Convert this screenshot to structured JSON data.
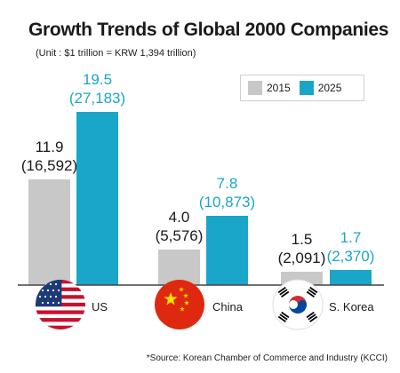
{
  "colors": {
    "y2015": "#c8c8c8",
    "y2025": "#1aa6c8",
    "label2015": "#1a1a1a",
    "label2025": "#1aa6c8"
  },
  "header": {
    "title": "Growth Trends of Global 2000 Companies",
    "unit_note": "(Unit : $1 trillion = KRW 1,394 trillion)"
  },
  "legend": {
    "items": [
      "2015",
      "2025"
    ]
  },
  "footer": {
    "source": "*Source: Korean Chamber of Commerce and Industry (KCCI)"
  },
  "flags": [
    "us-flag",
    "china-flag",
    "south-korea-flag"
  ],
  "chart_data": {
    "type": "bar",
    "title": "Growth Trends of Global 2000 Companies",
    "subtitle": "(Unit : $1 trillion = KRW 1,394 trillion)",
    "categories": [
      "US",
      "China",
      "S. Korea"
    ],
    "series": [
      {
        "name": "2015",
        "values": [
          11.9,
          4.0,
          1.5
        ],
        "labels": [
          "11.9",
          "4.0",
          "1.5"
        ],
        "sublabels": [
          "(16,592)",
          "(5,576)",
          "(2,091)"
        ]
      },
      {
        "name": "2025",
        "values": [
          19.5,
          7.8,
          1.7
        ],
        "labels": [
          "19.5",
          "7.8",
          "1.7"
        ],
        "sublabels": [
          "(27,183)",
          "(10,873)",
          "(2,370)"
        ]
      }
    ],
    "legend": "top-right",
    "grid": false
  }
}
